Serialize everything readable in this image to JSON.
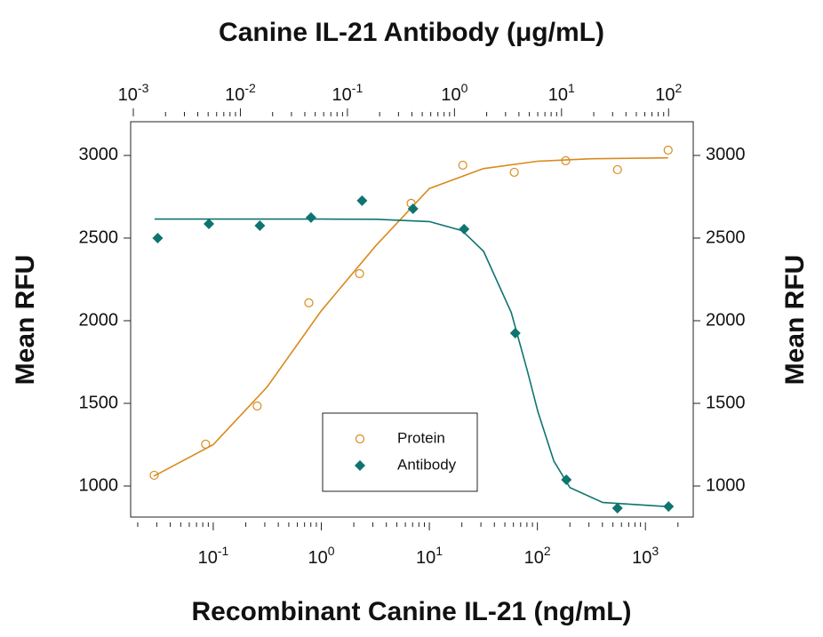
{
  "chart_data": {
    "type": "scatter",
    "title": "Canine IL-21 Antibody (μg/mL)",
    "x_label": "Recombinant Canine IL-21 (ng/mL)",
    "y_label": "Mean RFU",
    "y2_label": "Mean RFU",
    "x_log": true,
    "x2_log": true,
    "xlim": [
      0.0172,
      2770
    ],
    "x2lim": [
      0.000944,
      170
    ],
    "ylim": [
      812,
      3204
    ],
    "y2lim": [
      812,
      3204
    ],
    "xticks": [
      {
        "value": 0.1,
        "label": "10",
        "sup": "-1"
      },
      {
        "value": 1,
        "label": "10",
        "sup": "0"
      },
      {
        "value": 10,
        "label": "10",
        "sup": "1"
      },
      {
        "value": 100,
        "label": "10",
        "sup": "2"
      },
      {
        "value": 1000,
        "label": "10",
        "sup": "3"
      }
    ],
    "x2ticks": [
      {
        "value": 0.001,
        "label": "10",
        "sup": "-3"
      },
      {
        "value": 0.01,
        "label": "10",
        "sup": "-2"
      },
      {
        "value": 0.1,
        "label": "10",
        "sup": "-1"
      },
      {
        "value": 1,
        "label": "10",
        "sup": "0"
      },
      {
        "value": 10,
        "label": "10",
        "sup": "1"
      },
      {
        "value": 100,
        "label": "10",
        "sup": "2"
      }
    ],
    "yticks": [
      1000,
      1500,
      2000,
      2500,
      3000
    ],
    "y2ticks": [
      1000,
      1500,
      2000,
      2500,
      3000
    ],
    "series": [
      {
        "name": "Protein",
        "color": "#d98a1c",
        "marker": "open-circle",
        "axis": "x",
        "x": [
          0.0284,
          0.085,
          0.255,
          0.767,
          2.26,
          6.78,
          20.4,
          61.1,
          183,
          551,
          1622
        ],
        "values": [
          1065,
          1253,
          1484,
          2108,
          2285,
          2710,
          2941,
          2898,
          2968,
          2914,
          3032
        ],
        "curve_x": [
          0.0282,
          0.1,
          0.316,
          1,
          3.16,
          10,
          31.6,
          100,
          316,
          1622
        ],
        "curve_values": [
          1060,
          1250,
          1600,
          2060,
          2450,
          2800,
          2920,
          2965,
          2980,
          2985
        ]
      },
      {
        "name": "Antibody",
        "color": "#0e7470",
        "marker": "diamond",
        "axis": "x2",
        "x": [
          0.00169,
          0.00508,
          0.0152,
          0.0457,
          0.137,
          0.41,
          1.23,
          3.7,
          11.1,
          33.3,
          100
        ],
        "values": [
          2500,
          2586,
          2575,
          2624,
          2726,
          2677,
          2554,
          1925,
          1038,
          866,
          876
        ],
        "curve_x": [
          0.00158,
          0.0577,
          0.185,
          0.583,
          1.18,
          1.87,
          3.39,
          4.78,
          6.01,
          8.49,
          12.0,
          24.3,
          100
        ],
        "curve_values": [
          2615,
          2615,
          2614,
          2600,
          2545,
          2420,
          2050,
          1700,
          1450,
          1150,
          990,
          900,
          875
        ]
      }
    ],
    "legend": "lower-center"
  }
}
